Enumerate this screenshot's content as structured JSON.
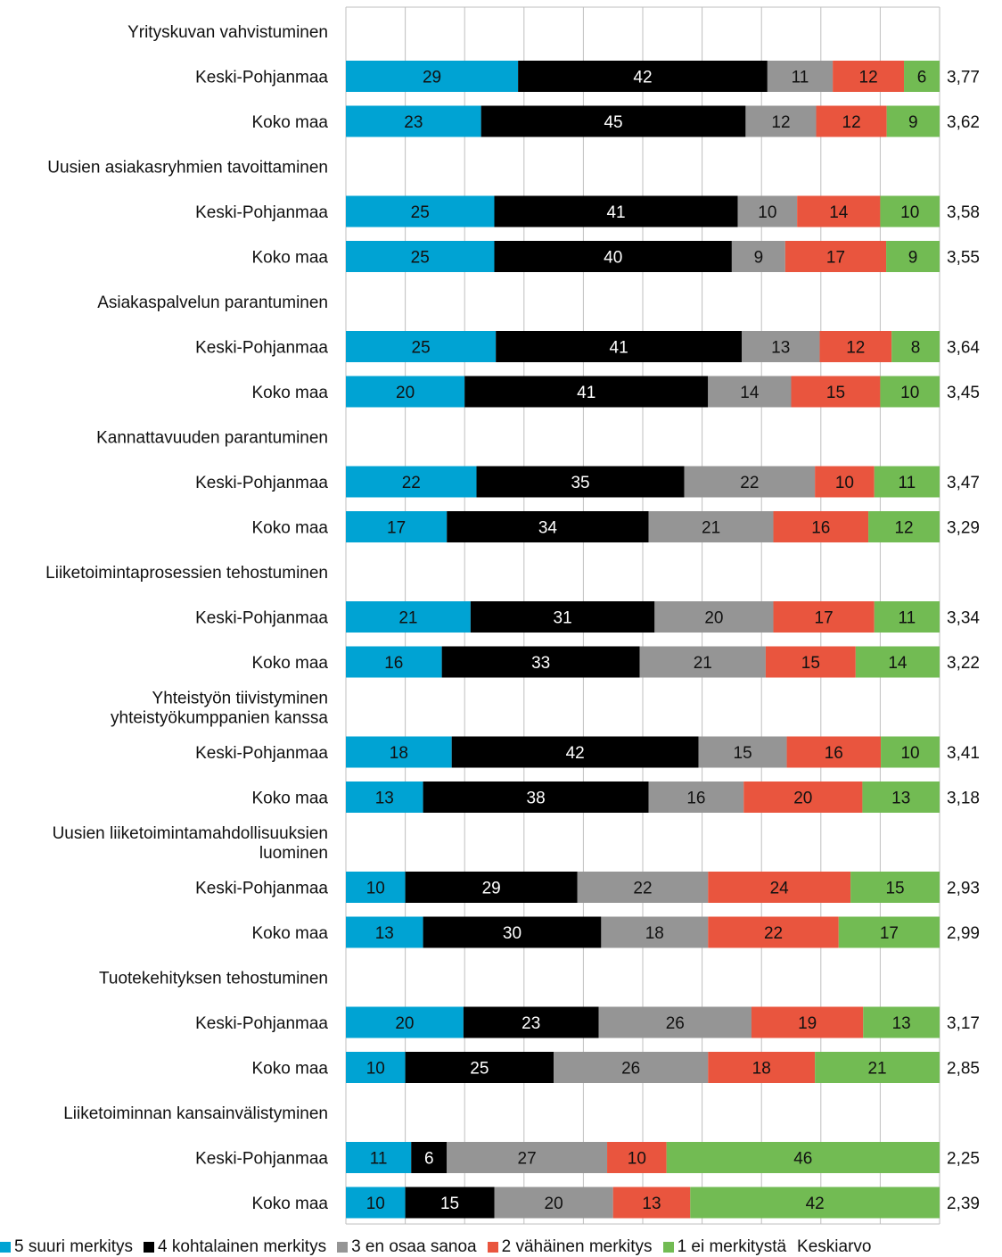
{
  "chart_data": {
    "type": "bar",
    "orientation": "horizontal",
    "stacked": "100%",
    "xlim": [
      0,
      100
    ],
    "grid": true,
    "legend_position": "bottom",
    "colors": [
      "#00a3d3",
      "#000000",
      "#959595",
      "#e9553e",
      "#72bb53"
    ],
    "groups": [
      {
        "name": "Yrityskuvan vahvistuminen",
        "rows": [
          {
            "label": "Keski-Pohjanmaa",
            "values": [
              29,
              42,
              11,
              12,
              6
            ],
            "mean": "3,77"
          },
          {
            "label": "Koko maa",
            "values": [
              23,
              45,
              12,
              12,
              9
            ],
            "mean": "3,62"
          }
        ]
      },
      {
        "name": "Uusien asiakasryhmien tavoittaminen",
        "rows": [
          {
            "label": "Keski-Pohjanmaa",
            "values": [
              25,
              41,
              10,
              14,
              10
            ],
            "mean": "3,58"
          },
          {
            "label": "Koko maa",
            "values": [
              25,
              40,
              9,
              17,
              9
            ],
            "mean": "3,55"
          }
        ]
      },
      {
        "name": "Asiakaspalvelun parantuminen",
        "rows": [
          {
            "label": "Keski-Pohjanmaa",
            "values": [
              25,
              41,
              13,
              12,
              8
            ],
            "mean": "3,64"
          },
          {
            "label": "Koko maa",
            "values": [
              20,
              41,
              14,
              15,
              10
            ],
            "mean": "3,45"
          }
        ]
      },
      {
        "name": "Kannattavuuden parantuminen",
        "rows": [
          {
            "label": "Keski-Pohjanmaa",
            "values": [
              22,
              35,
              22,
              10,
              11
            ],
            "mean": "3,47"
          },
          {
            "label": "Koko maa",
            "values": [
              17,
              34,
              21,
              16,
              12
            ],
            "mean": "3,29"
          }
        ]
      },
      {
        "name": "Liiketoimintaprosessien tehostuminen",
        "rows": [
          {
            "label": "Keski-Pohjanmaa",
            "values": [
              21,
              31,
              20,
              17,
              11
            ],
            "mean": "3,34"
          },
          {
            "label": "Koko maa",
            "values": [
              16,
              33,
              21,
              15,
              14
            ],
            "mean": "3,22"
          }
        ]
      },
      {
        "name": "Yhteistyön tiivistyminen yhteistyökumppanien kanssa",
        "name_lines": [
          "Yhteistyön tiivistyminen",
          "yhteistyökumppanien kanssa"
        ],
        "rows": [
          {
            "label": "Keski-Pohjanmaa",
            "values": [
              18,
              42,
              15,
              16,
              10
            ],
            "mean": "3,41"
          },
          {
            "label": "Koko maa",
            "values": [
              13,
              38,
              16,
              20,
              13
            ],
            "mean": "3,18"
          }
        ]
      },
      {
        "name": "Uusien liiketoimintamahdollisuuksien luominen",
        "name_lines": [
          "Uusien liiketoimintamahdollisuuksien",
          "luominen"
        ],
        "rows": [
          {
            "label": "Keski-Pohjanmaa",
            "values": [
              10,
              29,
              22,
              24,
              15
            ],
            "mean": "2,93"
          },
          {
            "label": "Koko maa",
            "values": [
              13,
              30,
              18,
              22,
              17
            ],
            "mean": "2,99"
          }
        ]
      },
      {
        "name": "Tuotekehityksen tehostuminen",
        "rows": [
          {
            "label": "Keski-Pohjanmaa",
            "values": [
              20,
              23,
              26,
              19,
              13
            ],
            "mean": "3,17"
          },
          {
            "label": "Koko maa",
            "values": [
              10,
              25,
              26,
              18,
              21
            ],
            "mean": "2,85"
          }
        ]
      },
      {
        "name": "Liiketoiminnan kansainvälistyminen",
        "rows": [
          {
            "label": "Keski-Pohjanmaa",
            "values": [
              11,
              6,
              27,
              10,
              46
            ],
            "mean": "2,25"
          },
          {
            "label": "Koko maa",
            "values": [
              10,
              15,
              20,
              13,
              42
            ],
            "mean": "2,39"
          }
        ]
      }
    ],
    "legend": [
      "5 suuri merkitys",
      "4 kohtalainen merkitys",
      "3 en osaa sanoa",
      "2 vähäinen merkitys",
      "1 ei merkitystä",
      "Keskiarvo"
    ]
  }
}
